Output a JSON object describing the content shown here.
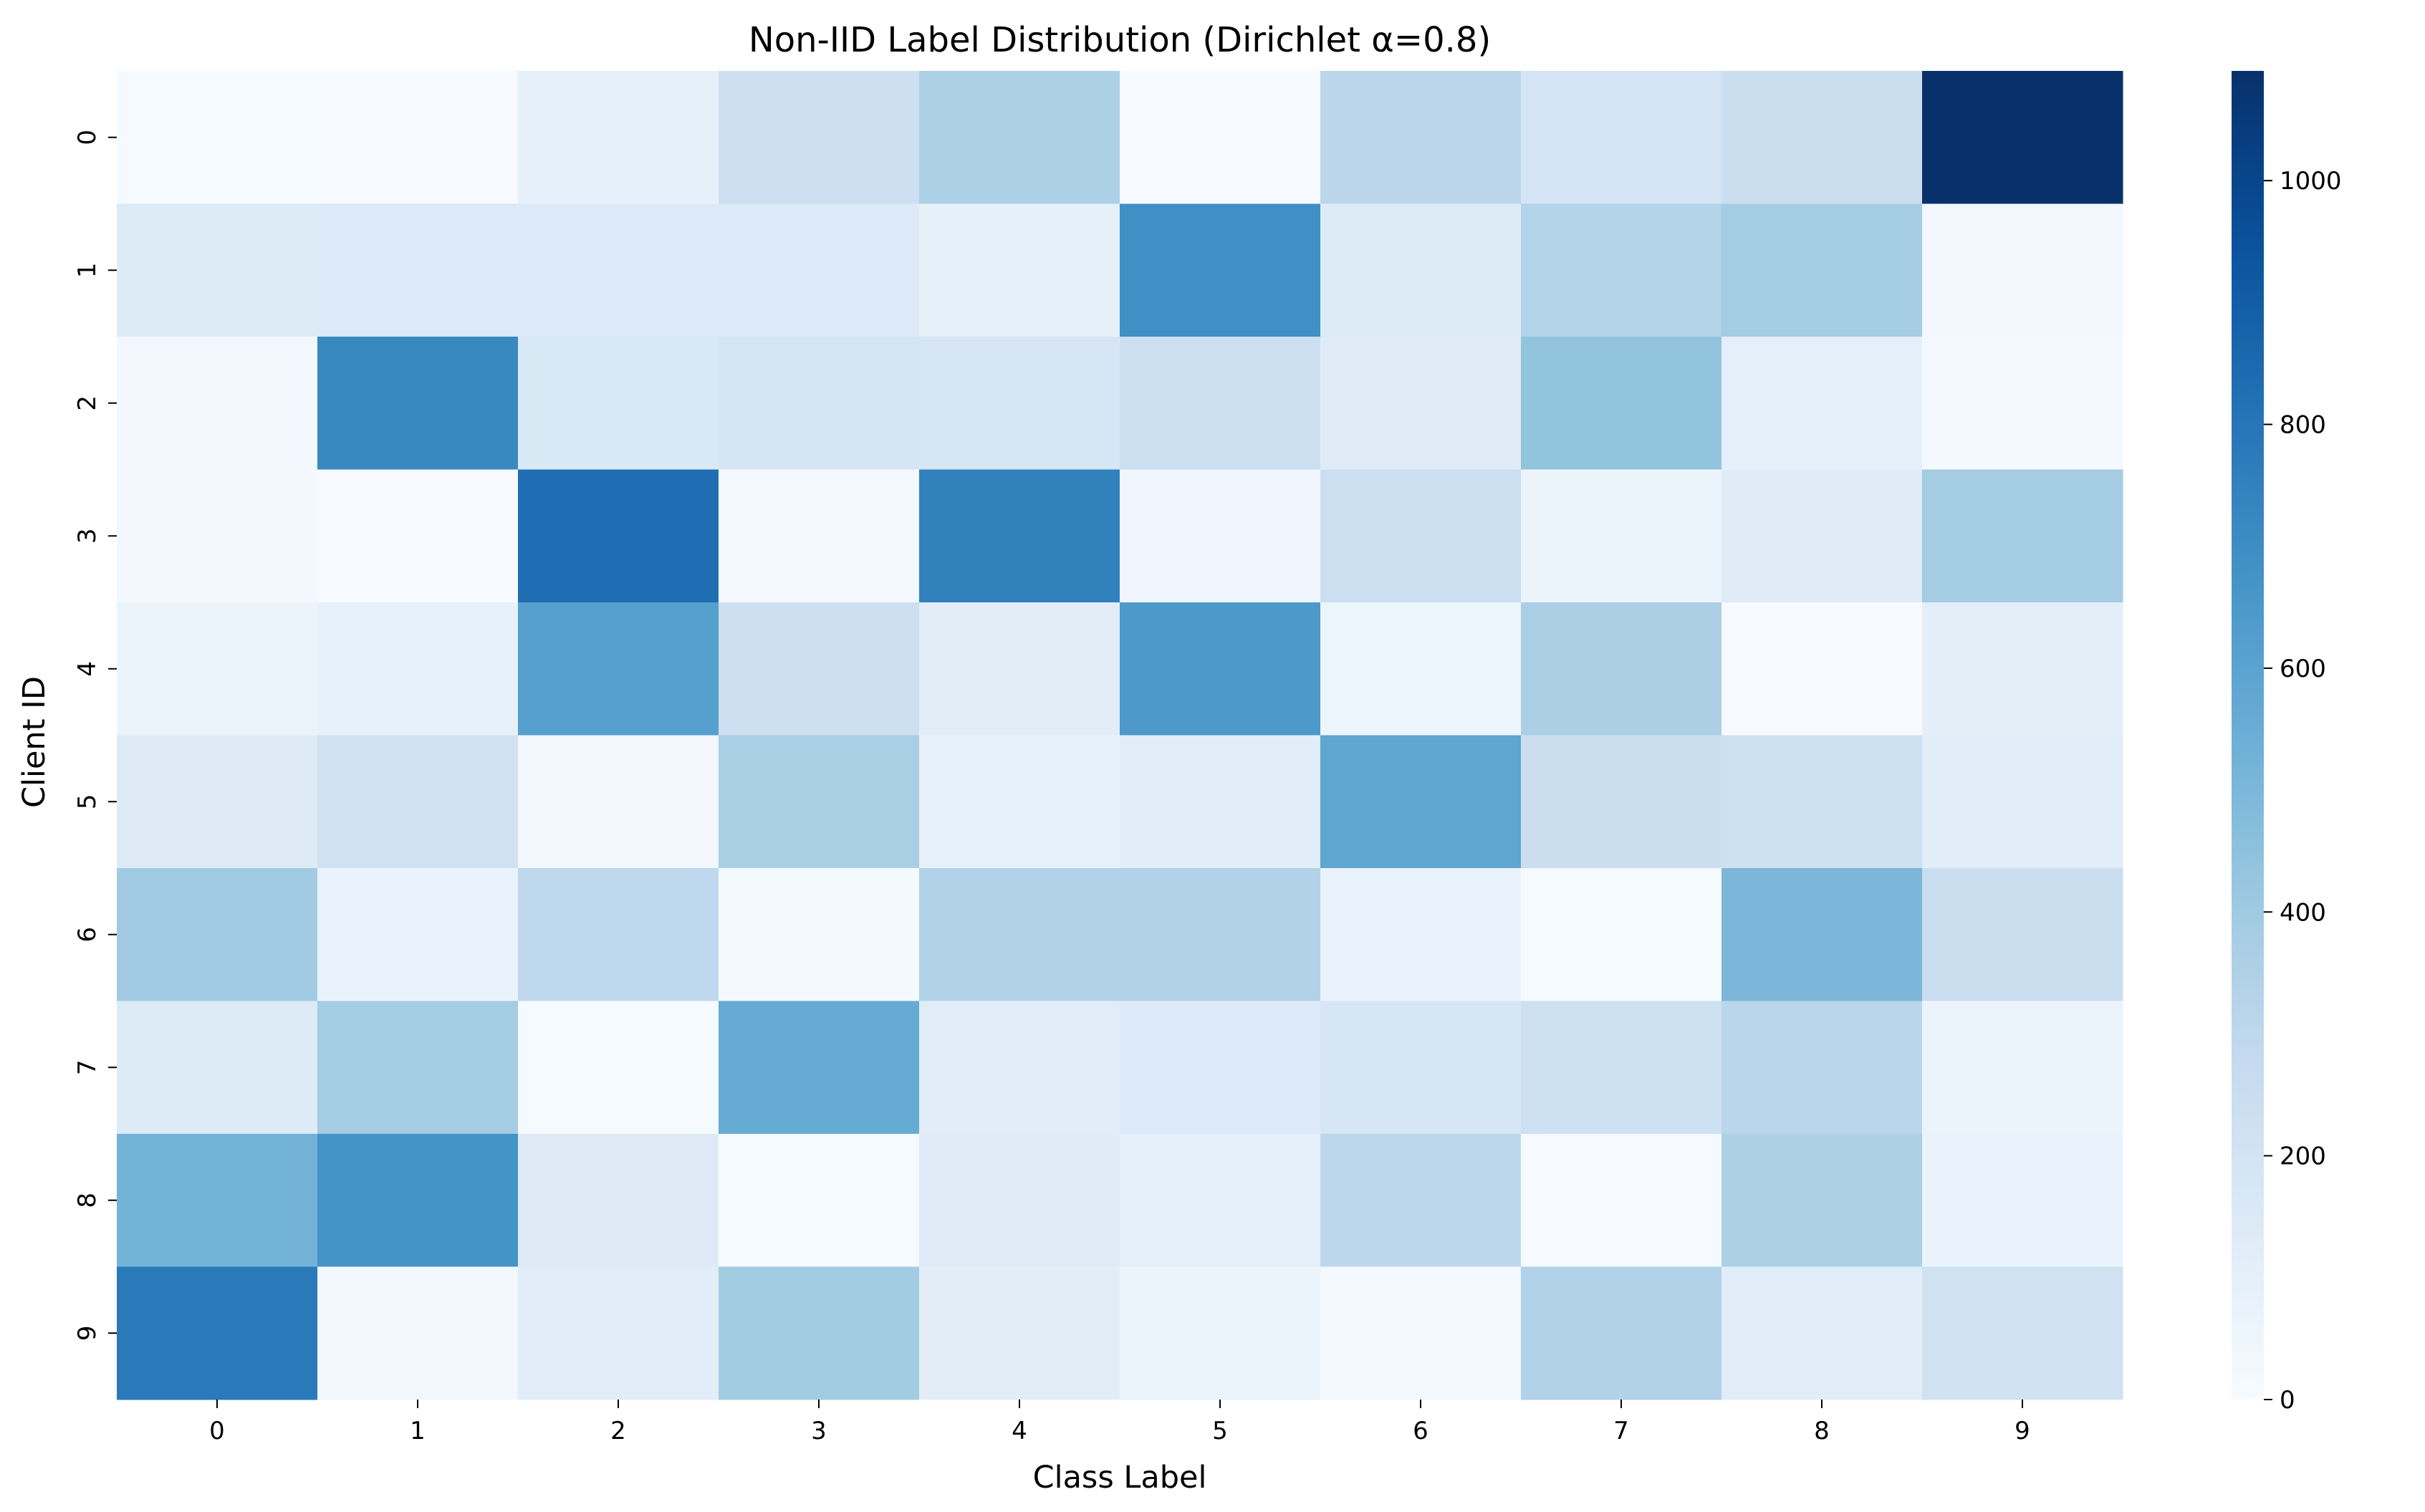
{
  "chart_data": {
    "type": "heatmap",
    "title": "Non-IID Label Distribution (Dirichlet α=0.8)",
    "xlabel": "Class Label",
    "ylabel": "Client ID",
    "x_categories": [
      "0",
      "1",
      "2",
      "3",
      "4",
      "5",
      "6",
      "7",
      "8",
      "9"
    ],
    "y_categories": [
      "0",
      "1",
      "2",
      "3",
      "4",
      "5",
      "6",
      "7",
      "8",
      "9"
    ],
    "values": [
      [
        12,
        5,
        90,
        235,
        360,
        8,
        310,
        195,
        250,
        1090
      ],
      [
        140,
        150,
        150,
        150,
        95,
        690,
        140,
        340,
        390,
        30
      ],
      [
        25,
        720,
        165,
        190,
        175,
        240,
        130,
        440,
        100,
        20
      ],
      [
        25,
        2,
        830,
        20,
        750,
        40,
        240,
        60,
        130,
        390
      ],
      [
        60,
        85,
        615,
        235,
        115,
        645,
        55,
        365,
        5,
        110
      ],
      [
        135,
        215,
        35,
        370,
        85,
        120,
        585,
        250,
        225,
        120
      ],
      [
        400,
        70,
        295,
        15,
        345,
        345,
        70,
        10,
        500,
        250
      ],
      [
        140,
        390,
        10,
        560,
        125,
        150,
        175,
        225,
        315,
        60
      ],
      [
        520,
        670,
        135,
        10,
        130,
        105,
        305,
        6,
        360,
        70
      ],
      [
        780,
        30,
        120,
        395,
        115,
        65,
        20,
        345,
        120,
        215
      ]
    ],
    "colorbar": {
      "min": 0,
      "max": 1090,
      "ticks": [
        "0",
        "200",
        "400",
        "600",
        "800",
        "1000"
      ],
      "tick_values": [
        0,
        200,
        400,
        600,
        800,
        1000
      ],
      "colormap": "Blues"
    }
  }
}
